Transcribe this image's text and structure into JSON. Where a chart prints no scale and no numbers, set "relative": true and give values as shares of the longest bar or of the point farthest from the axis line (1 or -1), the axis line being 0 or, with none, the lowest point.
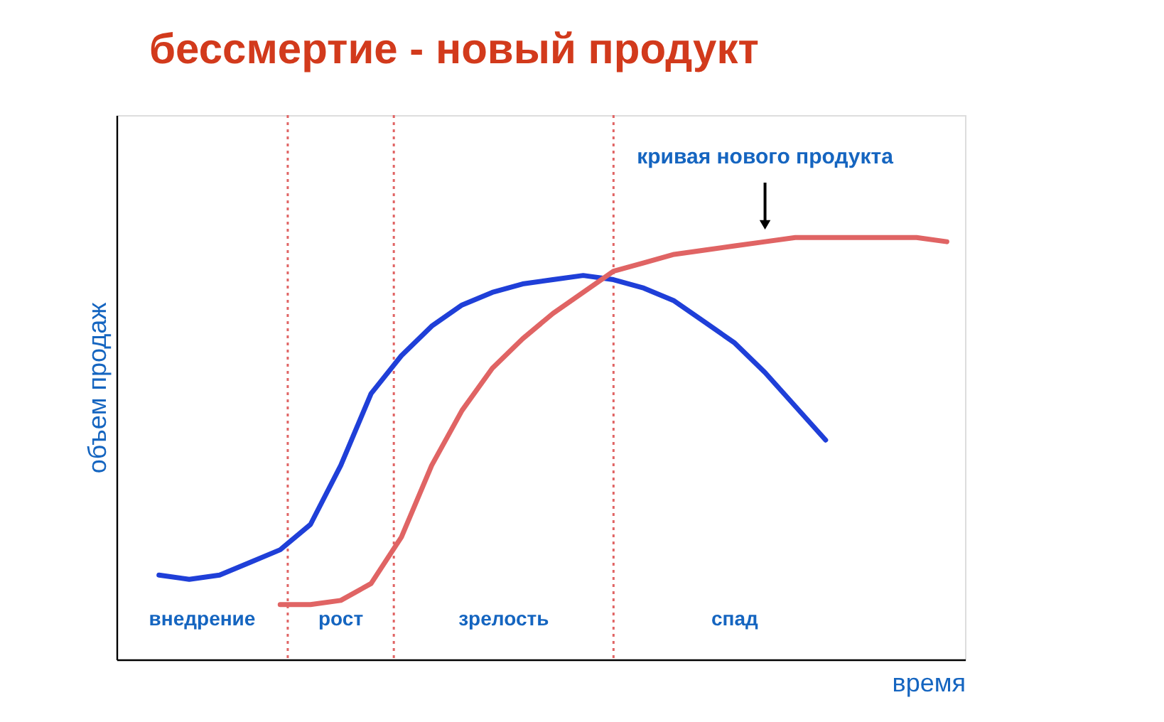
{
  "chart_data": {
    "type": "line",
    "title": "бессмертие - новый продукт",
    "xlabel": "время",
    "ylabel": "объем продаж",
    "relative": true,
    "tick_labels": false,
    "grid": false,
    "legend": false,
    "marker": "none",
    "line_style": "solid",
    "categories": [
      null,
      null,
      null,
      null,
      null,
      null,
      null,
      null,
      null,
      null,
      null,
      null,
      null,
      null,
      null,
      null,
      null,
      null,
      null,
      null,
      null,
      null,
      null,
      null,
      null,
      null,
      null
    ],
    "series": [
      {
        "color": "#1f3fd8",
        "values": [
          0.2,
          0.19,
          0.2,
          0.23,
          0.26,
          0.32,
          0.46,
          0.63,
          0.72,
          0.79,
          0.84,
          0.87,
          0.89,
          0.9,
          0.91,
          0.9,
          0.88,
          0.85,
          0.8,
          0.75,
          0.68,
          0.6,
          0.52,
          null,
          null,
          null,
          null
        ]
      },
      {
        "color": "#e06464",
        "values": [
          null,
          null,
          null,
          null,
          0.13,
          0.13,
          0.14,
          0.18,
          0.29,
          0.46,
          0.59,
          0.69,
          0.76,
          0.82,
          0.87,
          0.92,
          0.94,
          0.96,
          0.97,
          0.98,
          0.99,
          1.0,
          1.0,
          1.0,
          1.0,
          1.0,
          0.99
        ]
      }
    ],
    "annotations": [
      "внедрение",
      "рост",
      "зрелость",
      "спад",
      "кривая нового продукта"
    ]
  }
}
